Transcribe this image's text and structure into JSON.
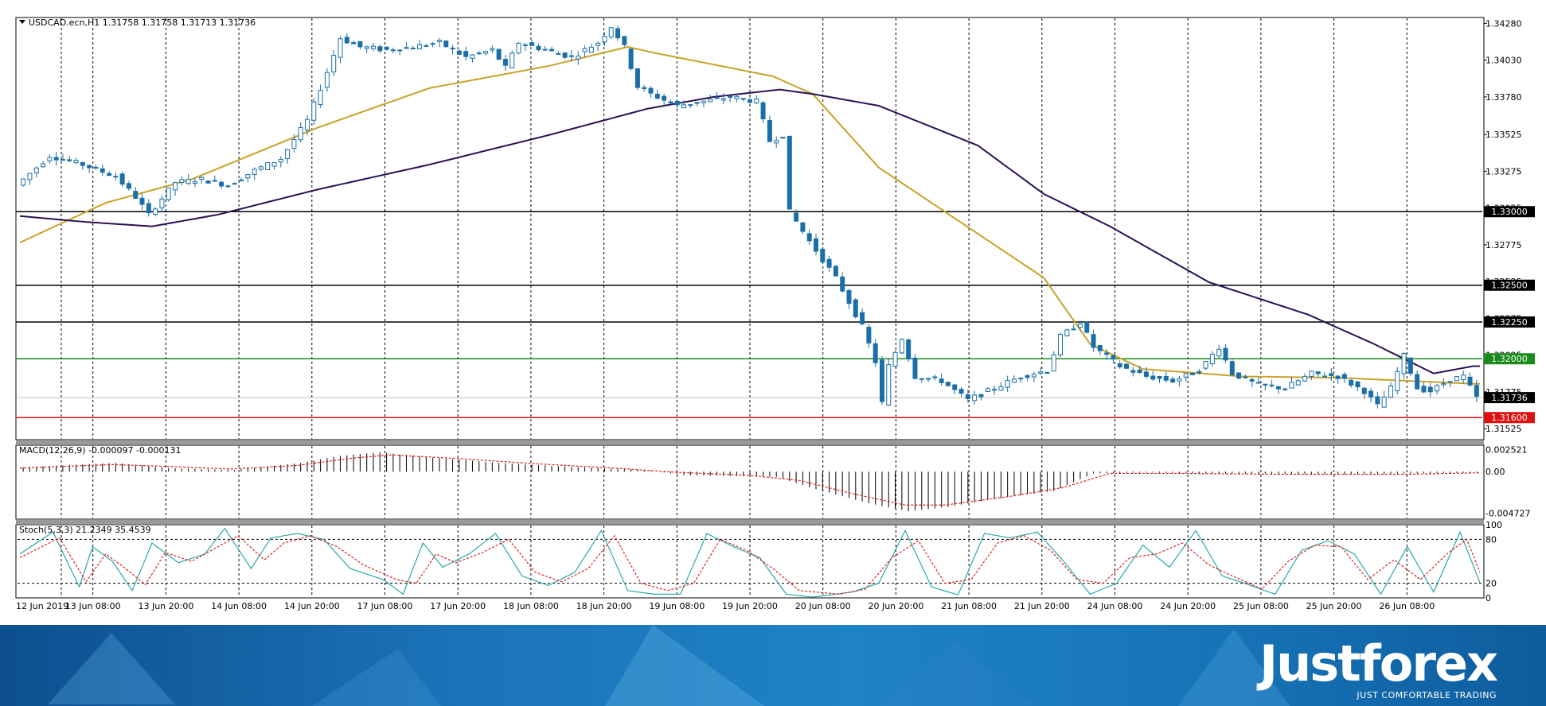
{
  "chart_data": [
    {
      "type": "candlestick",
      "title": "USDCAD.ecn,H1  1.31758 1.31758 1.31713 1.31736",
      "symbol": "USDCAD.ecn",
      "timeframe": "H1",
      "ohlc_header": [
        "1.31758",
        "1.31758",
        "1.31713",
        "1.31736"
      ],
      "ylim": [
        1.3145,
        1.3432
      ],
      "y_ticks": [
        "1.34280",
        "1.34030",
        "1.33780",
        "1.33525",
        "1.33275",
        "1.33025",
        "1.32775",
        "1.32525",
        "1.32275",
        "1.32025",
        "1.31775",
        "1.31525"
      ],
      "x_ticks": [
        "12 Jun 2019",
        "13 Jun 08:00",
        "13 Jun 20:00",
        "14 Jun 08:00",
        "14 Jun 20:00",
        "17 Jun 08:00",
        "17 Jun 20:00",
        "18 Jun 08:00",
        "18 Jun 20:00",
        "19 Jun 08:00",
        "19 Jun 20:00",
        "20 Jun 08:00",
        "20 Jun 20:00",
        "21 Jun 08:00",
        "21 Jun 20:00",
        "24 Jun 08:00",
        "24 Jun 20:00",
        "25 Jun 08:00",
        "25 Jun 20:00",
        "26 Jun 08:00"
      ],
      "current_price": {
        "label": "1.31736",
        "value": 1.31736
      },
      "horizontal_levels": [
        {
          "label": "1.33000",
          "value": 1.33,
          "color": "#000000"
        },
        {
          "label": "1.32500",
          "value": 1.325,
          "color": "#000000"
        },
        {
          "label": "1.32250",
          "value": 1.3225,
          "color": "#000000"
        },
        {
          "label": "1.32000",
          "value": 1.32,
          "color": "#1a8a1a"
        },
        {
          "label": "1.31600",
          "value": 1.316,
          "color": "#dd1111"
        }
      ],
      "candle_color": "#1a6fa8",
      "close_path": [
        [
          0,
          1.3318
        ],
        [
          5,
          1.3338
        ],
        [
          10,
          1.3332
        ],
        [
          15,
          1.3324
        ],
        [
          18,
          1.331
        ],
        [
          20,
          1.3298
        ],
        [
          24,
          1.332
        ],
        [
          28,
          1.3322
        ],
        [
          32,
          1.3318
        ],
        [
          36,
          1.3328
        ],
        [
          40,
          1.3336
        ],
        [
          44,
          1.3362
        ],
        [
          47,
          1.3395
        ],
        [
          49,
          1.3418
        ],
        [
          52,
          1.3412
        ],
        [
          56,
          1.341
        ],
        [
          60,
          1.3412
        ],
        [
          64,
          1.3415
        ],
        [
          68,
          1.3405
        ],
        [
          72,
          1.341
        ],
        [
          74,
          1.3398
        ],
        [
          76,
          1.3415
        ],
        [
          80,
          1.341
        ],
        [
          84,
          1.3405
        ],
        [
          88,
          1.3415
        ],
        [
          90,
          1.3426
        ],
        [
          92,
          1.3412
        ],
        [
          94,
          1.3385
        ],
        [
          96,
          1.338
        ],
        [
          100,
          1.3372
        ],
        [
          104,
          1.3375
        ],
        [
          108,
          1.3378
        ],
        [
          112,
          1.3375
        ],
        [
          114,
          1.3348
        ],
        [
          116,
          1.3352
        ],
        [
          117,
          1.33
        ],
        [
          120,
          1.328
        ],
        [
          124,
          1.3255
        ],
        [
          128,
          1.3222
        ],
        [
          130,
          1.3198
        ],
        [
          131,
          1.317
        ],
        [
          132,
          1.3195
        ],
        [
          134,
          1.3214
        ],
        [
          136,
          1.3188
        ],
        [
          140,
          1.3185
        ],
        [
          144,
          1.3172
        ],
        [
          148,
          1.318
        ],
        [
          152,
          1.3188
        ],
        [
          156,
          1.3192
        ],
        [
          158,
          1.3215
        ],
        [
          161,
          1.3225
        ],
        [
          163,
          1.3208
        ],
        [
          167,
          1.3195
        ],
        [
          171,
          1.3188
        ],
        [
          175,
          1.3185
        ],
        [
          179,
          1.3192
        ],
        [
          182,
          1.3208
        ],
        [
          184,
          1.319
        ],
        [
          188,
          1.3182
        ],
        [
          192,
          1.318
        ],
        [
          196,
          1.319
        ],
        [
          200,
          1.3188
        ],
        [
          204,
          1.3178
        ],
        [
          206,
          1.3168
        ],
        [
          208,
          1.318
        ],
        [
          210,
          1.3202
        ],
        [
          212,
          1.318
        ],
        [
          214,
          1.3178
        ],
        [
          217,
          1.3186
        ],
        [
          219,
          1.3188
        ],
        [
          221,
          1.31736
        ]
      ],
      "series": [
        {
          "name": "MA (gold)",
          "color": "#c9a227",
          "points": [
            [
              0,
              1.3279
            ],
            [
              13,
              1.3306
            ],
            [
              26,
              1.3322
            ],
            [
              45,
              1.3357
            ],
            [
              62,
              1.3384
            ],
            [
              80,
              1.3399
            ],
            [
              92,
              1.3412
            ],
            [
              96,
              1.3408
            ],
            [
              105,
              1.34
            ],
            [
              114,
              1.3392
            ],
            [
              120,
              1.338
            ],
            [
              130,
              1.333
            ],
            [
              142,
              1.3294
            ],
            [
              155,
              1.3255
            ],
            [
              162,
              1.321
            ],
            [
              170,
              1.3193
            ],
            [
              185,
              1.3188
            ],
            [
              200,
              1.3187
            ],
            [
              210,
              1.3185
            ],
            [
              220,
              1.3183
            ]
          ]
        },
        {
          "name": "MA (purple)",
          "color": "#2b1055",
          "points": [
            [
              0,
              1.3297
            ],
            [
              10,
              1.3293
            ],
            [
              20,
              1.329
            ],
            [
              30,
              1.3298
            ],
            [
              45,
              1.3315
            ],
            [
              62,
              1.3332
            ],
            [
              80,
              1.3352
            ],
            [
              95,
              1.337
            ],
            [
              105,
              1.3378
            ],
            [
              115,
              1.3383
            ],
            [
              120,
              1.338
            ],
            [
              130,
              1.3372
            ],
            [
              145,
              1.3345
            ],
            [
              155,
              1.3312
            ],
            [
              165,
              1.329
            ],
            [
              180,
              1.3252
            ],
            [
              195,
              1.323
            ],
            [
              205,
              1.321
            ],
            [
              214,
              1.319
            ],
            [
              220,
              1.3195
            ]
          ]
        }
      ]
    },
    {
      "type": "histogram",
      "title": "MACD(12,26,9) -0.000097 -0.000131",
      "indicator": "MACD(12,26,9)",
      "values_header": [
        "-0.000097",
        "-0.000131"
      ],
      "ylim": [
        -0.0054,
        0.003
      ],
      "y_ticks": [
        "0.002521",
        "0.00",
        "-0.004727"
      ],
      "main_path": [
        [
          0,
          0.0005
        ],
        [
          14,
          0.001
        ],
        [
          22,
          0.0004
        ],
        [
          32,
          0.0002
        ],
        [
          42,
          0.001
        ],
        [
          48,
          0.0018
        ],
        [
          54,
          0.0022
        ],
        [
          62,
          0.0016
        ],
        [
          72,
          0.001
        ],
        [
          84,
          0.0005
        ],
        [
          94,
          0.0002
        ],
        [
          100,
          -0.0004
        ],
        [
          108,
          -0.0005
        ],
        [
          114,
          -0.0006
        ],
        [
          120,
          -0.002
        ],
        [
          128,
          -0.0036
        ],
        [
          134,
          -0.0045
        ],
        [
          140,
          -0.004
        ],
        [
          148,
          -0.003
        ],
        [
          156,
          -0.0022
        ],
        [
          162,
          -0.0002
        ],
        [
          170,
          -0.0001
        ],
        [
          180,
          -0.0002
        ],
        [
          200,
          -0.0003
        ],
        [
          221,
          -9.7e-05
        ]
      ],
      "signal_path": [
        [
          0,
          0.0004
        ],
        [
          14,
          0.0008
        ],
        [
          22,
          0.0006
        ],
        [
          32,
          0.0003
        ],
        [
          42,
          0.0007
        ],
        [
          50,
          0.0015
        ],
        [
          56,
          0.0019
        ],
        [
          66,
          0.0015
        ],
        [
          78,
          0.0009
        ],
        [
          90,
          0.0004
        ],
        [
          100,
          -0.0001
        ],
        [
          110,
          -0.0004
        ],
        [
          118,
          -0.001
        ],
        [
          126,
          -0.0025
        ],
        [
          134,
          -0.0038
        ],
        [
          140,
          -0.0038
        ],
        [
          150,
          -0.0028
        ],
        [
          158,
          -0.0018
        ],
        [
          165,
          -0.0002
        ],
        [
          175,
          -0.0002
        ],
        [
          190,
          -0.0003
        ],
        [
          210,
          -0.0003
        ],
        [
          221,
          -0.000131
        ]
      ],
      "signal_color": "#dd2222"
    },
    {
      "type": "line",
      "title": "Stoch(5,3,3) 21.2349 35.4539",
      "indicator": "Stoch(5,3,3)",
      "values_header": [
        "21.2349",
        "35.4539"
      ],
      "ylim": [
        0,
        100
      ],
      "y_ticks": [
        "100",
        "80",
        "20",
        "0"
      ],
      "levels": [
        80,
        20
      ],
      "series": [
        {
          "name": "%K",
          "color": "#2aa8a8",
          "points": [
            [
              0,
              60
            ],
            [
              5,
              90
            ],
            [
              9,
              15
            ],
            [
              11,
              70
            ],
            [
              14,
              50
            ],
            [
              17,
              10
            ],
            [
              20,
              75
            ],
            [
              24,
              48
            ],
            [
              28,
              60
            ],
            [
              31,
              95
            ],
            [
              35,
              40
            ],
            [
              38,
              82
            ],
            [
              42,
              88
            ],
            [
              46,
              80
            ],
            [
              50,
              40
            ],
            [
              55,
              25
            ],
            [
              58,
              5
            ],
            [
              61,
              75
            ],
            [
              64,
              42
            ],
            [
              68,
              60
            ],
            [
              72,
              88
            ],
            [
              76,
              30
            ],
            [
              80,
              17
            ],
            [
              84,
              35
            ],
            [
              88,
              92
            ],
            [
              92,
              10
            ],
            [
              96,
              5
            ],
            [
              100,
              5
            ],
            [
              104,
              88
            ],
            [
              108,
              70
            ],
            [
              112,
              55
            ],
            [
              116,
              5
            ],
            [
              120,
              1
            ],
            [
              126,
              8
            ],
            [
              130,
              20
            ],
            [
              134,
              92
            ],
            [
              138,
              15
            ],
            [
              142,
              4
            ],
            [
              146,
              88
            ],
            [
              150,
              82
            ],
            [
              154,
              90
            ],
            [
              158,
              50
            ],
            [
              162,
              5
            ],
            [
              166,
              20
            ],
            [
              170,
              72
            ],
            [
              174,
              42
            ],
            [
              178,
              92
            ],
            [
              182,
              30
            ],
            [
              186,
              18
            ],
            [
              190,
              5
            ],
            [
              194,
              65
            ],
            [
              198,
              78
            ],
            [
              202,
              60
            ],
            [
              206,
              5
            ],
            [
              210,
              70
            ],
            [
              214,
              8
            ],
            [
              218,
              90
            ],
            [
              221,
              21
            ]
          ]
        },
        {
          "name": "%D",
          "color": "#dd2222",
          "points": [
            [
              0,
              55
            ],
            [
              6,
              82
            ],
            [
              10,
              22
            ],
            [
              13,
              60
            ],
            [
              16,
              40
            ],
            [
              19,
              18
            ],
            [
              22,
              62
            ],
            [
              26,
              50
            ],
            [
              30,
              70
            ],
            [
              33,
              85
            ],
            [
              37,
              52
            ],
            [
              40,
              75
            ],
            [
              44,
              85
            ],
            [
              48,
              70
            ],
            [
              52,
              45
            ],
            [
              57,
              25
            ],
            [
              60,
              20
            ],
            [
              63,
              60
            ],
            [
              66,
              48
            ],
            [
              70,
              62
            ],
            [
              74,
              80
            ],
            [
              78,
              35
            ],
            [
              82,
              22
            ],
            [
              86,
              40
            ],
            [
              90,
              85
            ],
            [
              94,
              20
            ],
            [
              98,
              10
            ],
            [
              102,
              20
            ],
            [
              106,
              80
            ],
            [
              110,
              65
            ],
            [
              114,
              40
            ],
            [
              118,
              10
            ],
            [
              124,
              5
            ],
            [
              128,
              12
            ],
            [
              132,
              55
            ],
            [
              136,
              78
            ],
            [
              140,
              20
            ],
            [
              144,
              25
            ],
            [
              148,
              75
            ],
            [
              152,
              85
            ],
            [
              156,
              65
            ],
            [
              160,
              25
            ],
            [
              164,
              20
            ],
            [
              168,
              55
            ],
            [
              172,
              60
            ],
            [
              176,
              75
            ],
            [
              180,
              45
            ],
            [
              184,
              28
            ],
            [
              188,
              12
            ],
            [
              192,
              50
            ],
            [
              196,
              72
            ],
            [
              200,
              70
            ],
            [
              204,
              25
            ],
            [
              208,
              52
            ],
            [
              212,
              25
            ],
            [
              216,
              60
            ],
            [
              219,
              80
            ],
            [
              221,
              35
            ]
          ]
        }
      ]
    }
  ],
  "banner": {
    "brand_name": "Justforex",
    "tagline": "JUST COMFORTABLE TRADING"
  }
}
